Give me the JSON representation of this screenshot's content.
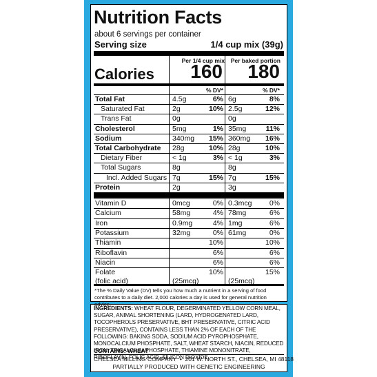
{
  "header": {
    "title": "Nutrition Facts",
    "servings": "about 6 servings per container",
    "serving_size_label": "Serving size",
    "serving_size_value": "1/4 cup mix (39g)"
  },
  "columns": [
    "Per 1/4 cup mix",
    "Per baked portion"
  ],
  "calories": {
    "label": "Calories",
    "values": [
      "160",
      "180"
    ]
  },
  "dv_header": [
    "% DV*",
    "% DV*"
  ],
  "rows": [
    {
      "name": "Total Fat",
      "bold": true,
      "cols": [
        {
          "amount": "4.5g",
          "dv": "6%"
        },
        {
          "amount": "6g",
          "dv": "8%"
        }
      ]
    },
    {
      "name": "Saturated Fat",
      "indent": 1,
      "cols": [
        {
          "amount": "2g",
          "dv": "10%"
        },
        {
          "amount": "2.5g",
          "dv": "12%"
        }
      ]
    },
    {
      "name": "Trans Fat",
      "indent": 1,
      "cols": [
        {
          "amount": "0g"
        },
        {
          "amount": "0g"
        }
      ]
    },
    {
      "name": "Cholesterol",
      "bold": true,
      "cols": [
        {
          "amount": "5mg",
          "dv": "1%"
        },
        {
          "amount": "35mg",
          "dv": "11%"
        }
      ]
    },
    {
      "name": "Sodium",
      "bold": true,
      "cols": [
        {
          "amount": "340mg",
          "dv": "15%"
        },
        {
          "amount": "360mg",
          "dv": "16%"
        }
      ]
    },
    {
      "name": "Total Carbohydrate",
      "bold": true,
      "cols": [
        {
          "amount": "28g",
          "dv": "10%"
        },
        {
          "amount": "28g",
          "dv": "10%"
        }
      ]
    },
    {
      "name": "Dietary Fiber",
      "indent": 1,
      "cols": [
        {
          "amount": "< 1g",
          "dv": "3%"
        },
        {
          "amount": "< 1g",
          "dv": "3%"
        }
      ]
    },
    {
      "name": "Total Sugars",
      "indent": 1,
      "cols": [
        {
          "amount": "8g"
        },
        {
          "amount": "8g"
        }
      ]
    },
    {
      "name": "Incl. Added Sugars",
      "indent": 2,
      "cols": [
        {
          "amount": "7g",
          "dv": "15%"
        },
        {
          "amount": "7g",
          "dv": "15%"
        }
      ]
    },
    {
      "name": "Protein",
      "bold": true,
      "cols": [
        {
          "amount": "2g"
        },
        {
          "amount": "3g"
        }
      ]
    }
  ],
  "micros": [
    {
      "name": "Vitamin D",
      "cols": [
        {
          "amount": "0mcg",
          "dv": "0%"
        },
        {
          "amount": "0.3mcg",
          "dv": "0%"
        }
      ]
    },
    {
      "name": "Calcium",
      "cols": [
        {
          "amount": "58mg",
          "dv": "4%"
        },
        {
          "amount": "78mg",
          "dv": "6%"
        }
      ]
    },
    {
      "name": "Iron",
      "cols": [
        {
          "amount": "0.9mg",
          "dv": "4%"
        },
        {
          "amount": "1mg",
          "dv": "6%"
        }
      ]
    },
    {
      "name": "Potassium",
      "cols": [
        {
          "amount": "32mg",
          "dv": "0%"
        },
        {
          "amount": "61mg",
          "dv": "0%"
        }
      ]
    },
    {
      "name": "Thiamin",
      "cols": [
        {
          "dv": "10%"
        },
        {
          "dv": "10%"
        }
      ]
    },
    {
      "name": "Riboflavin",
      "cols": [
        {
          "dv": "6%"
        },
        {
          "dv": "6%"
        }
      ]
    },
    {
      "name": "Niacin",
      "cols": [
        {
          "dv": "6%"
        },
        {
          "dv": "6%"
        }
      ]
    },
    {
      "name": "Folate",
      "note": "(folic acid)",
      "cols": [
        {
          "dv": "10%",
          "amount": "(25mcg)"
        },
        {
          "dv": "15%",
          "amount": "(25mcg)"
        }
      ]
    }
  ],
  "footnote": "*The % Daily Value (DV) tells you how much a nutrient in a serving of food contributes to a daily diet. 2,000 calories a day is used for general nutrition advice.",
  "ingredients": {
    "label": "INGREDIENTS:",
    "text": "WHEAT FLOUR, DEGERMINATED YELLOW CORN MEAL, SUGAR, ANIMAL SHORTENING (LARD, HYDROGENATED LARD, TOCOPHEROLS PRESERVATIVE, BHT PRESERVATIVE, CITRIC ACID PRESERVATIVE), CONTAINS LESS THAN 2% OF EACH OF THE FOLLOWING: BAKING SODA, SODIUM ACID PYROPHOSPHATE, MONOCALCIUM PHOSPHATE, SALT, WHEAT STARCH, NIACIN, REDUCED IRON, TRICALCIUM PHOSPHATE, THIAMINE MONONITRATE, RIBOFLAVIN, FOLIC ACID, SILICON DIOXIDE."
  },
  "contains": "CONTAINS: WHEAT",
  "company": "CHELSEA MILLING COMPANY  •  201 W. NORTH ST., CHELSEA, MI 48118",
  "disclosure": "PARTIALLY PRODUCED WITH GENETIC ENGINEERING"
}
